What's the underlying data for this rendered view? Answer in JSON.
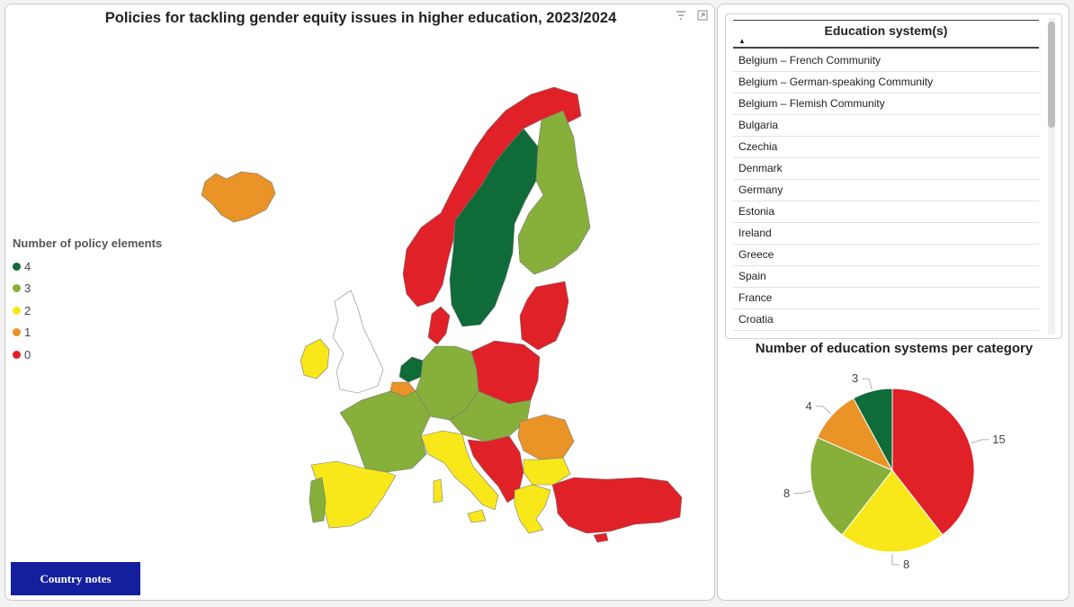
{
  "map": {
    "title": "Policies for tackling gender equity issues in higher education, 2023/2024",
    "legend": {
      "title": "Number of policy elements",
      "items": [
        {
          "label": "4",
          "color": "#0f6b38"
        },
        {
          "label": "3",
          "color": "#86b03a"
        },
        {
          "label": "2",
          "color": "#f8e81a"
        },
        {
          "label": "1",
          "color": "#ea9326"
        },
        {
          "label": "0",
          "color": "#e02128"
        }
      ]
    },
    "button_label": "Country notes",
    "icons": [
      "filter-icon",
      "expand-icon"
    ]
  },
  "table": {
    "header": "Education system(s)",
    "sort": "ascending",
    "rows": [
      "Belgium – French Community",
      "Belgium – German-speaking Community",
      "Belgium – Flemish Community",
      "Bulgaria",
      "Czechia",
      "Denmark",
      "Germany",
      "Estonia",
      "Ireland",
      "Greece",
      "Spain",
      "France",
      "Croatia"
    ]
  },
  "chart_data": {
    "type": "pie",
    "title": "Number of education systems per category",
    "slices": [
      {
        "category": "0",
        "value": 15,
        "color": "#e02128"
      },
      {
        "category": "2",
        "value": 8,
        "color": "#f8e81a"
      },
      {
        "category": "3",
        "value": 8,
        "color": "#86b03a"
      },
      {
        "category": "1",
        "value": 4,
        "color": "#ea9326"
      },
      {
        "category": "4",
        "value": 3,
        "color": "#0f6b38"
      }
    ]
  }
}
